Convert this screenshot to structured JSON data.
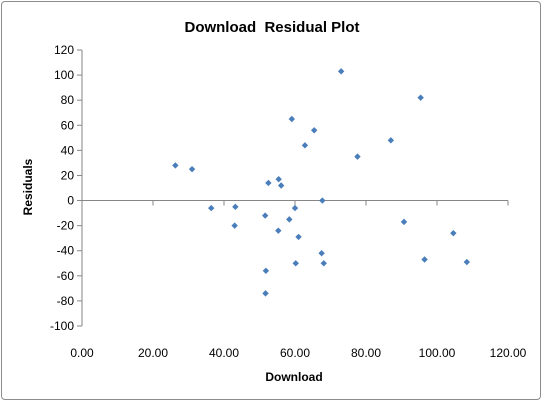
{
  "chart_data": {
    "type": "scatter",
    "title": "Download  Residual Plot",
    "xlabel": "Download",
    "ylabel": "Residuals",
    "xlim": [
      0,
      120
    ],
    "ylim": [
      -100,
      120
    ],
    "x_ticks": [
      "0.00",
      "20.00",
      "40.00",
      "60.00",
      "80.00",
      "100.00",
      "120.00"
    ],
    "y_ticks": [
      "120",
      "100",
      "80",
      "60",
      "40",
      "20",
      "0",
      "-20",
      "-40",
      "-60",
      "-80",
      "-100"
    ],
    "grid": false,
    "legend": "none",
    "marker_color": "#4a7ebb",
    "points": [
      {
        "x": 26.3,
        "y": 28
      },
      {
        "x": 31.0,
        "y": 25
      },
      {
        "x": 36.4,
        "y": -6
      },
      {
        "x": 43.2,
        "y": -5
      },
      {
        "x": 43.0,
        "y": -20
      },
      {
        "x": 51.6,
        "y": -12
      },
      {
        "x": 51.8,
        "y": -56
      },
      {
        "x": 51.7,
        "y": -74
      },
      {
        "x": 52.5,
        "y": 14
      },
      {
        "x": 55.4,
        "y": 17
      },
      {
        "x": 56.1,
        "y": 12
      },
      {
        "x": 55.3,
        "y": -24
      },
      {
        "x": 58.4,
        "y": -15
      },
      {
        "x": 59.1,
        "y": 65
      },
      {
        "x": 60.0,
        "y": -6
      },
      {
        "x": 60.2,
        "y": -50
      },
      {
        "x": 61.0,
        "y": -29
      },
      {
        "x": 62.8,
        "y": 44
      },
      {
        "x": 65.4,
        "y": 56
      },
      {
        "x": 67.7,
        "y": 0
      },
      {
        "x": 67.5,
        "y": -42
      },
      {
        "x": 68.1,
        "y": -50
      },
      {
        "x": 73.0,
        "y": 103
      },
      {
        "x": 77.6,
        "y": 35
      },
      {
        "x": 87.0,
        "y": 48
      },
      {
        "x": 90.7,
        "y": -17
      },
      {
        "x": 95.4,
        "y": 82
      },
      {
        "x": 96.5,
        "y": -47
      },
      {
        "x": 104.6,
        "y": -26
      },
      {
        "x": 108.4,
        "y": -49
      }
    ]
  }
}
